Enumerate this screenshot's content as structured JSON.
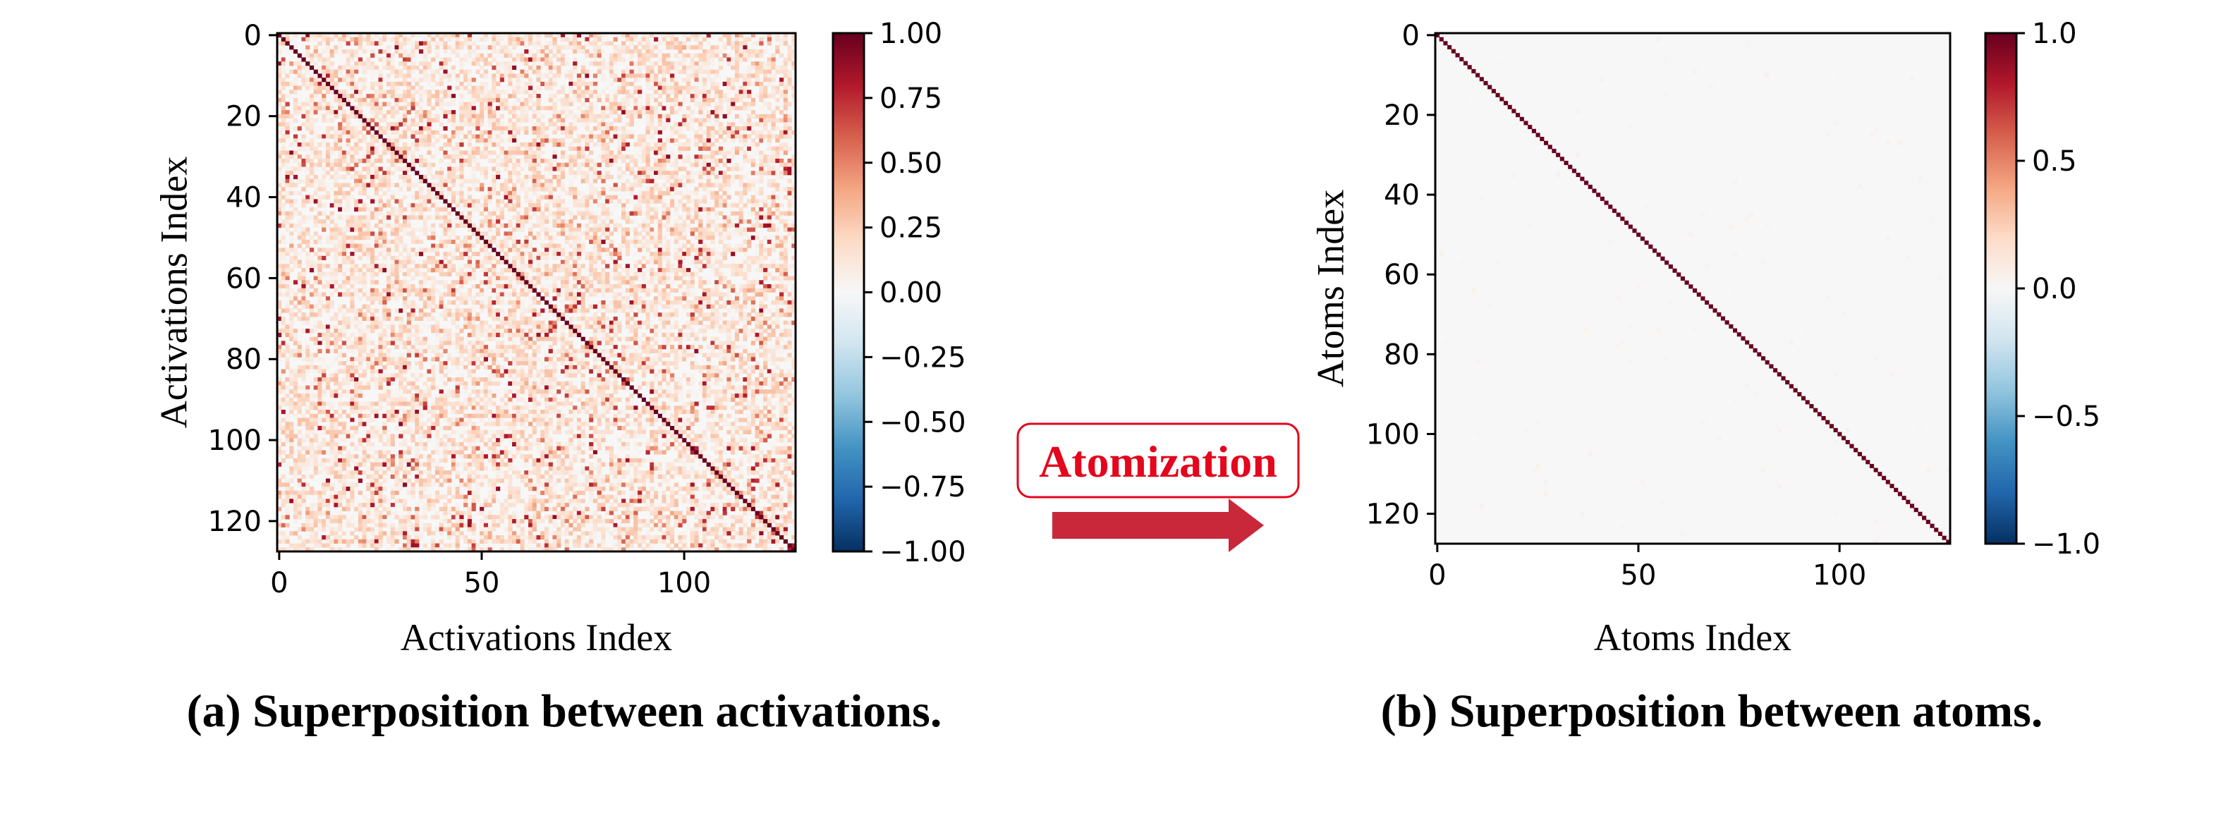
{
  "colors": {
    "cmap": [
      "#053061",
      "#2166ac",
      "#4393c3",
      "#92c5de",
      "#d1e5f0",
      "#f7f7f7",
      "#fddbc7",
      "#f4a582",
      "#d6604d",
      "#b2182b",
      "#67001f"
    ],
    "arrow": "#c8283a",
    "arrow_label": "#e3061d"
  },
  "arrow": {
    "label": "Atomization",
    "icon": "right-arrow-icon"
  },
  "chart_data": [
    {
      "type": "heatmap",
      "title": "",
      "caption": "(a) Superposition between activations.",
      "xlabel": "Activations Index",
      "ylabel": "Activations Index",
      "size": 128,
      "xlim": [
        0,
        127
      ],
      "ylim": [
        127,
        0
      ],
      "xticks": [
        0,
        50,
        100
      ],
      "xtick_labels": [
        "0",
        "50",
        "100"
      ],
      "yticks": [
        0,
        20,
        40,
        60,
        80,
        100,
        120
      ],
      "ytick_labels": [
        "0",
        "20",
        "40",
        "60",
        "80",
        "100",
        "120"
      ],
      "diagonal_value": 1.0,
      "off_diagonal_description": "mostly 0.0–0.3 with scattered values up to ~0.9",
      "off_diagonal_typical_max": 0.3,
      "off_diagonal_peak": 0.9,
      "colorbar": {
        "range": [
          -1.0,
          1.0
        ],
        "ticks": [
          1.0,
          0.75,
          0.5,
          0.25,
          0.0,
          -0.25,
          -0.5,
          -0.75,
          -1.0
        ],
        "tick_labels": [
          "1.00",
          "0.75",
          "0.50",
          "0.25",
          "0.00",
          "−0.25",
          "−0.50",
          "−0.75",
          "−1.00"
        ]
      }
    },
    {
      "type": "heatmap",
      "title": "",
      "caption": "(b) Superposition between atoms.",
      "xlabel": "Atoms Index",
      "ylabel": "Atoms Index",
      "size": 128,
      "xlim": [
        0,
        127
      ],
      "ylim": [
        127,
        0
      ],
      "xticks": [
        0,
        50,
        100
      ],
      "xtick_labels": [
        "0",
        "50",
        "100"
      ],
      "yticks": [
        0,
        20,
        40,
        60,
        80,
        100,
        120
      ],
      "ytick_labels": [
        "0",
        "20",
        "40",
        "60",
        "80",
        "100",
        "120"
      ],
      "diagonal_value": 1.0,
      "off_diagonal_description": "approximately 0.0 everywhere",
      "off_diagonal_typical_max": 0.02,
      "off_diagonal_peak": 0.05,
      "colorbar": {
        "range": [
          -1.0,
          1.0
        ],
        "ticks": [
          1.0,
          0.5,
          0.0,
          -0.5,
          -1.0
        ],
        "tick_labels": [
          "1.0",
          "0.5",
          "0.0",
          "−0.5",
          "−1.0"
        ]
      }
    }
  ]
}
